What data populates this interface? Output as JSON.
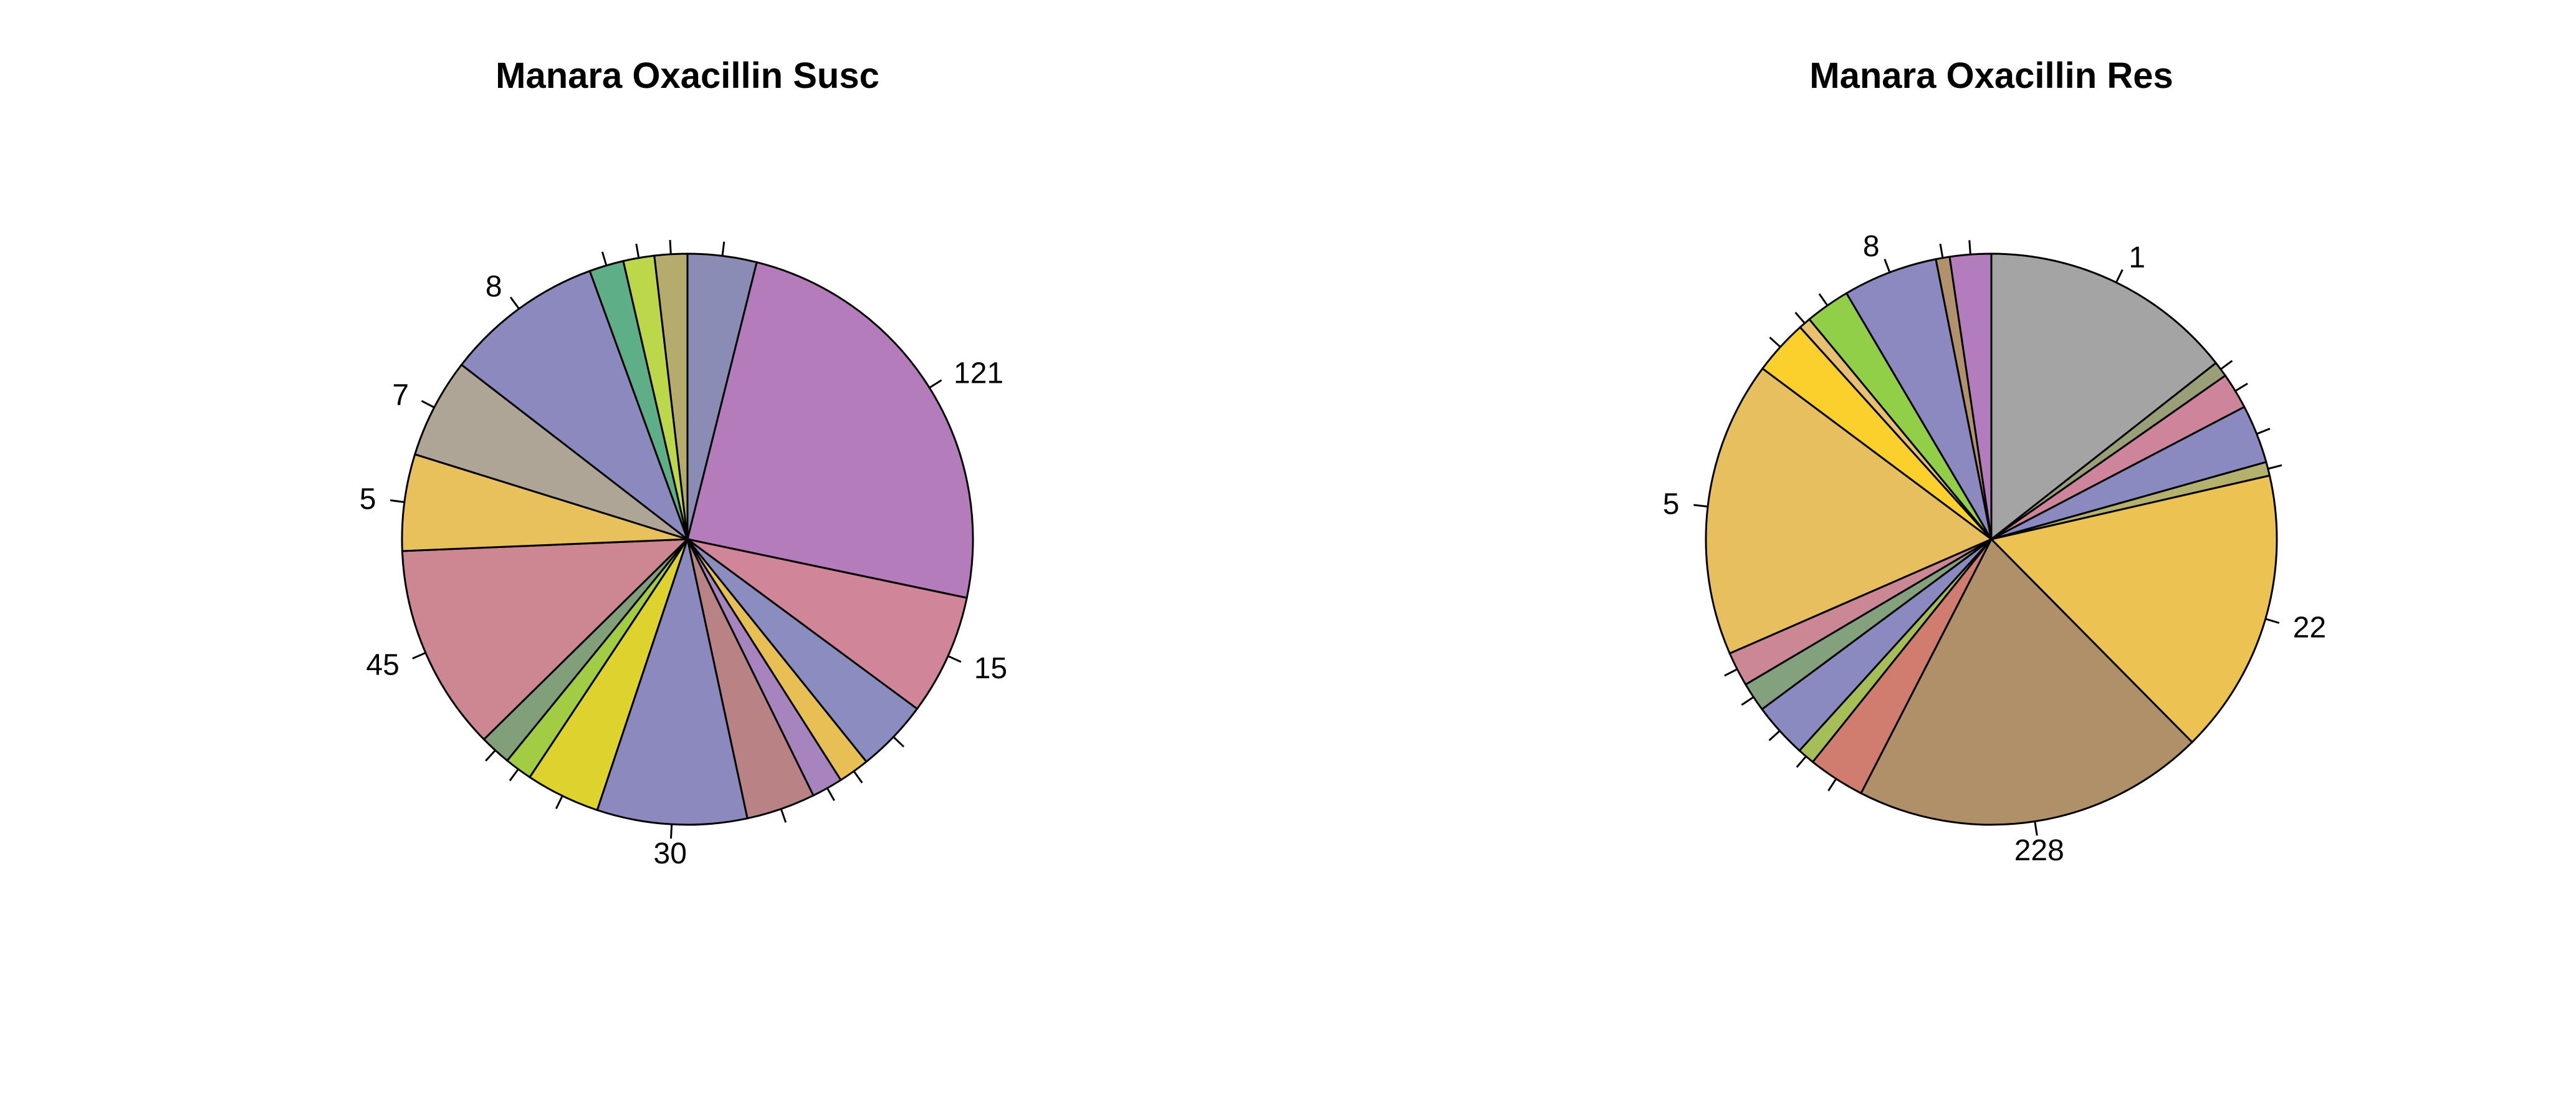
{
  "chart_data": [
    {
      "type": "pie",
      "title": "Manara Oxacillin Susc",
      "direction": "clockwise",
      "start": "12 o'clock",
      "slices": [
        {
          "label": "",
          "value": 4.0,
          "color": "#8a8cb5"
        },
        {
          "label": "121",
          "value": 25.0,
          "color": "#b47cba"
        },
        {
          "label": "15",
          "value": 7.0,
          "color": "#d08598"
        },
        {
          "label": "",
          "value": 4.2,
          "color": "#8b8cc0"
        },
        {
          "label": "",
          "value": 1.8,
          "color": "#e8bf55"
        },
        {
          "label": "",
          "value": 1.8,
          "color": "#a884bf"
        },
        {
          "label": "",
          "value": 4.0,
          "color": "#b98385"
        },
        {
          "label": "30",
          "value": 8.7,
          "color": "#8b89be"
        },
        {
          "label": "",
          "value": 4.3,
          "color": "#ddd22e"
        },
        {
          "label": "",
          "value": 1.6,
          "color": "#a3cc45"
        },
        {
          "label": "",
          "value": 1.8,
          "color": "#81a07a"
        },
        {
          "label": "45",
          "value": 12.0,
          "color": "#cc8792"
        },
        {
          "label": "5",
          "value": 5.6,
          "color": "#e8c05c"
        },
        {
          "label": "7",
          "value": 5.8,
          "color": "#aea597"
        },
        {
          "label": "8",
          "value": 9.2,
          "color": "#8b89be"
        },
        {
          "label": "",
          "value": 2.0,
          "color": "#5eae88"
        },
        {
          "label": "",
          "value": 1.8,
          "color": "#bcd84a"
        },
        {
          "label": "",
          "value": 1.9,
          "color": "#b5ab6d"
        }
      ]
    },
    {
      "type": "pie",
      "title": "Manara Oxacillin Res",
      "direction": "clockwise",
      "start": "12 o'clock",
      "slices": [
        {
          "label": "1",
          "value": 14.8,
          "color": "#a4a4a4"
        },
        {
          "label": "",
          "value": 0.9,
          "color": "#9b9f77"
        },
        {
          "label": "",
          "value": 2.1,
          "color": "#ce859b"
        },
        {
          "label": "",
          "value": 3.4,
          "color": "#8b8ac0"
        },
        {
          "label": "",
          "value": 0.8,
          "color": "#b4b06d"
        },
        {
          "label": "22",
          "value": 16.6,
          "color": "#ecc252"
        },
        {
          "label": "228",
          "value": 20.5,
          "color": "#b09069"
        },
        {
          "label": "",
          "value": 3.3,
          "color": "#d07c6e"
        },
        {
          "label": "",
          "value": 1.0,
          "color": "#a6be58"
        },
        {
          "label": "",
          "value": 3.2,
          "color": "#8b8ac0"
        },
        {
          "label": "",
          "value": 1.7,
          "color": "#82a17c"
        },
        {
          "label": "",
          "value": 2.0,
          "color": "#cc8795"
        },
        {
          "label": "5",
          "value": 17.2,
          "color": "#e8bf5e"
        },
        {
          "label": "",
          "value": 3.2,
          "color": "#fbcf2c"
        },
        {
          "label": "",
          "value": 0.7,
          "color": "#e8c070"
        },
        {
          "label": "",
          "value": 2.6,
          "color": "#92cf48"
        },
        {
          "label": "8",
          "value": 5.5,
          "color": "#8b89bf"
        },
        {
          "label": "",
          "value": 0.8,
          "color": "#b2926d"
        },
        {
          "label": "",
          "value": 2.4,
          "color": "#b27cbd"
        }
      ]
    }
  ]
}
